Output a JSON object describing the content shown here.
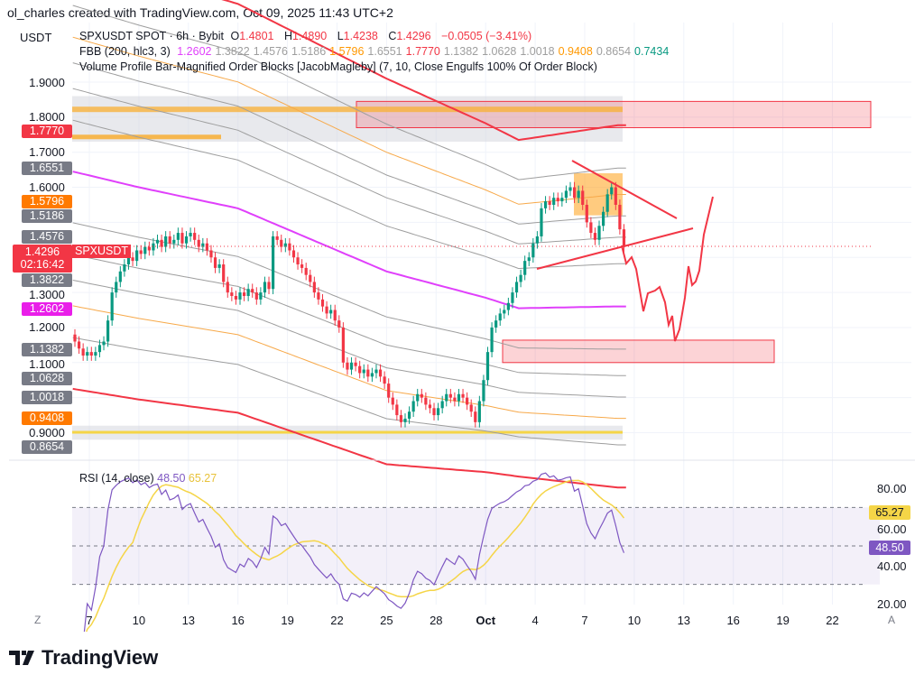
{
  "credit": "ol_charles created with TradingView.com, Oct 09, 2025 11:43 UTC+2",
  "unit": "USDT",
  "legend": {
    "symbol": "SPXUSDT SPOT · 6h · Bybit",
    "o_label": "O",
    "o": "1.4801",
    "h_label": "H",
    "h": "1.4890",
    "l_label": "L",
    "l": "1.4238",
    "c_label": "C",
    "c": "1.4296",
    "change": "−0.0505 (−3.41%)",
    "fbb_title": "FBB (200, hlc3, 3)",
    "fbb_values": [
      {
        "v": "1.2602",
        "color": "#e040fb"
      },
      {
        "v": "1.3822",
        "color": "#9e9e9e"
      },
      {
        "v": "1.4576",
        "color": "#9e9e9e"
      },
      {
        "v": "1.5186",
        "color": "#9e9e9e"
      },
      {
        "v": "1.5796",
        "color": "#ff9800"
      },
      {
        "v": "1.6551",
        "color": "#9e9e9e"
      },
      {
        "v": "1.7770",
        "color": "#f23645"
      },
      {
        "v": "1.1382",
        "color": "#9e9e9e"
      },
      {
        "v": "1.0628",
        "color": "#9e9e9e"
      },
      {
        "v": "1.0018",
        "color": "#9e9e9e"
      },
      {
        "v": "0.9408",
        "color": "#ff9800"
      },
      {
        "v": "0.8654",
        "color": "#9e9e9e"
      },
      {
        "v": "0.7434",
        "color": "#089981"
      }
    ],
    "vp_title": "Volume Profile Bar-Magnified Order Blocks [JacobMagleby] (7, 10, Close Engulfs 100% Of Order Block)"
  },
  "price_ticks": [
    "1.9000",
    "1.8000",
    "1.7000",
    "1.6000",
    "1.3000",
    "1.2000",
    "1.1000",
    "0.9000"
  ],
  "price_badges": [
    {
      "label": "1.7770",
      "color": "#f23645"
    },
    {
      "label": "1.6551",
      "color": "#787b86"
    },
    {
      "label": "1.5796",
      "color": "#ff7a00"
    },
    {
      "label": "1.5186",
      "color": "#787b86"
    },
    {
      "label": "1.4576",
      "color": "#787b86"
    },
    {
      "label": "1.3822",
      "color": "#787b86"
    },
    {
      "label": "1.2602",
      "color": "#e91ee9"
    },
    {
      "label": "1.1382",
      "color": "#787b86"
    },
    {
      "label": "1.0628",
      "color": "#787b86"
    },
    {
      "label": "1.0018",
      "color": "#787b86"
    },
    {
      "label": "0.9408",
      "color": "#ff7a00"
    },
    {
      "label": "0.8654",
      "color": "#787b86"
    }
  ],
  "last_price": {
    "value": "1.4296",
    "countdown": "02:16:42",
    "tag": "SPXUSDT",
    "color": "#f23645"
  },
  "x_ticks": [
    "7",
    "10",
    "13",
    "16",
    "19",
    "22",
    "25",
    "28",
    "Oct",
    "4",
    "7",
    "10",
    "13",
    "16",
    "19",
    "22"
  ],
  "x_axis_buttons": {
    "left": "Z",
    "right": "A"
  },
  "rsi": {
    "title": "RSI (14, close)",
    "value": "48.50",
    "ma_value": "65.27",
    "ticks": [
      "80.00",
      "60.00",
      "40.00",
      "20.00"
    ],
    "line_color": "#7e57c2",
    "ma_color": "#f5d547",
    "upper_band": 70,
    "lower_band": 30,
    "mid_band": 50
  },
  "chart_data": {
    "type": "candlestick",
    "symbol": "SPXUSDT",
    "interval": "6h",
    "first_candle": "2025-09-06",
    "ylim": [
      0.85,
      1.95
    ],
    "up_color": "#089981",
    "down_color": "#f23645",
    "close": [
      1.16,
      1.14,
      1.12,
      1.13,
      1.12,
      1.13,
      1.15,
      1.16,
      1.22,
      1.3,
      1.33,
      1.36,
      1.38,
      1.4,
      1.39,
      1.42,
      1.41,
      1.43,
      1.42,
      1.44,
      1.45,
      1.43,
      1.46,
      1.44,
      1.45,
      1.47,
      1.44,
      1.46,
      1.47,
      1.45,
      1.43,
      1.44,
      1.42,
      1.4,
      1.37,
      1.38,
      1.33,
      1.3,
      1.29,
      1.28,
      1.3,
      1.29,
      1.31,
      1.3,
      1.28,
      1.3,
      1.33,
      1.31,
      1.46,
      1.45,
      1.43,
      1.44,
      1.42,
      1.4,
      1.38,
      1.37,
      1.35,
      1.33,
      1.3,
      1.28,
      1.26,
      1.24,
      1.25,
      1.22,
      1.2,
      1.1,
      1.08,
      1.1,
      1.09,
      1.07,
      1.08,
      1.06,
      1.07,
      1.08,
      1.06,
      1.04,
      1.0,
      0.98,
      0.95,
      0.93,
      0.94,
      0.96,
      0.99,
      1.01,
      1.0,
      0.98,
      0.97,
      0.95,
      0.97,
      0.99,
      1.01,
      1.0,
      0.99,
      1.01,
      1.0,
      0.98,
      0.96,
      0.93,
      0.99,
      1.05,
      1.13,
      1.2,
      1.22,
      1.24,
      1.25,
      1.27,
      1.3,
      1.33,
      1.35,
      1.39,
      1.4,
      1.44,
      1.46,
      1.54,
      1.56,
      1.55,
      1.57,
      1.56,
      1.57,
      1.59,
      1.6,
      1.57,
      1.59,
      1.55,
      1.5,
      1.47,
      1.45,
      1.49,
      1.53,
      1.58,
      1.6,
      1.55,
      1.4801,
      1.4296
    ],
    "fbb": {
      "basis_day_points": [
        [
          0,
          1.645
        ],
        [
          4,
          1.6
        ],
        [
          10,
          1.54
        ],
        [
          14,
          1.46
        ],
        [
          19,
          1.36
        ],
        [
          25,
          1.285
        ],
        [
          27,
          1.255
        ],
        [
          33,
          1.2602
        ]
      ],
      "deviation_day_points": [
        [
          0,
          0.62
        ],
        [
          19,
          0.55
        ],
        [
          27,
          0.48
        ],
        [
          33,
          0.5168
        ]
      ],
      "ratios": [
        0.236,
        0.382,
        0.5,
        0.618,
        0.764,
        1
      ],
      "basis_color": "#e040fb"
    },
    "zones": [
      {
        "name": "upper-order-block",
        "from": 1.73,
        "to": 1.86,
        "color": "#d1d4dc"
      },
      {
        "name": "upper-target-box",
        "from": 1.77,
        "to": 1.845,
        "color": "#f23645"
      },
      {
        "name": "lower-target-box",
        "from": 1.1,
        "to": 1.164,
        "color": "#f23645"
      },
      {
        "name": "lower-order-block",
        "from": 0.88,
        "to": 0.92,
        "color": "#d1d4dc"
      },
      {
        "name": "recent-order-block",
        "from": 1.52,
        "to": 1.64,
        "color": "#ff9800"
      }
    ]
  },
  "brand": "TradingView"
}
